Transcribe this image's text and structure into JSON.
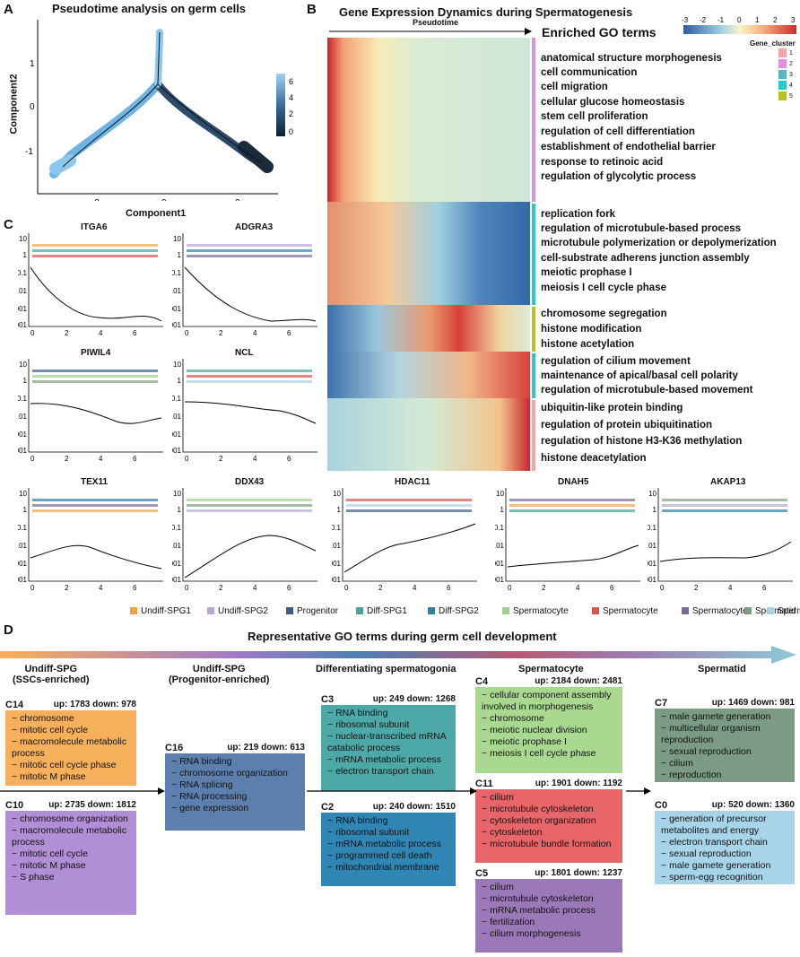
{
  "panelA": {
    "label": "A",
    "title": "Pseudotime analysis on germ cells",
    "xlabel": "Component1",
    "ylabel": "Component2",
    "xticks": [
      "-2",
      "0",
      "2"
    ],
    "yticks": [
      "1",
      "0",
      "-1"
    ],
    "colorbar_ticks": [
      "6",
      "4",
      "2",
      "0"
    ]
  },
  "panelB": {
    "label": "B",
    "title": "Gene Expression Dynamics during Spermatogenesis",
    "axis_label": "Pseudotime",
    "go_header": "Enriched GO terms",
    "scale_ticks": [
      "-3",
      "-2",
      "-1",
      "0",
      "1",
      "2",
      "3"
    ],
    "cluster_legend_title": "Gene_cluster",
    "cluster_ids": [
      "1",
      "2",
      "3",
      "4",
      "5"
    ],
    "cluster_colors": [
      "#f4a3a6",
      "#e48fd9",
      "#5ab4c1",
      "#2ec7c8",
      "#b7c225"
    ],
    "go_terms": [
      "anatomical structure morphogenesis",
      "cell communication",
      "cell migration",
      "cellular glucose homeostasis",
      "stem cell proliferation",
      "regulation of cell differentiation",
      "establishment of endothelial barrier",
      "response to retinoic acid",
      "regulation of glycolytic process",
      "replication fork",
      "regulation of microtubule-based process",
      "microtubule polymerization or depolymerization",
      "cell-substrate adherens junction assembly",
      "meiotic prophase I",
      "meiosis I cell cycle phase",
      "chromosome segregation",
      "histone modification",
      "histone acetylation",
      "regulation of cilium movement",
      "maintenance of apical/basal cell polarity",
      "regulation of microtubule-based movement",
      "ubiquitin-like protein binding",
      "regulation of protein ubiquitination",
      "regulation of histone H3-K36 methylation",
      "histone deacetylation"
    ]
  },
  "panelC": {
    "label": "C",
    "genes": [
      "ITGA6",
      "ADGRA3",
      "PIWIL4",
      "NCL",
      "TEX11",
      "DDX43",
      "HDAC11",
      "DNAH5",
      "AKAP13"
    ],
    "yticks": [
      "10",
      "1",
      "0.1",
      "0.01",
      "0.001",
      "0.0001"
    ],
    "xticks": [
      "0",
      "2",
      "4",
      "6"
    ],
    "legend": [
      {
        "label": "Undiff-SPG1",
        "color": "#f0a243"
      },
      {
        "label": "Undiff-SPG2",
        "color": "#b7a6d3"
      },
      {
        "label": "Progenitor",
        "color": "#3e5c88"
      },
      {
        "label": "Diff-SPG1",
        "color": "#46a39b"
      },
      {
        "label": "Diff-SPG2",
        "color": "#2f7fa7"
      },
      {
        "label": "Spermatocyte",
        "color": "#9cd08a"
      },
      {
        "label": "Spermatocyte",
        "color": "#d9534f"
      },
      {
        "label": "Spermatocyte",
        "color": "#7c6a96"
      },
      {
        "label": "Spermatid",
        "color": "#7f9b85"
      },
      {
        "label": "Spermatid",
        "color": "#a8d2e2"
      }
    ]
  },
  "panelD": {
    "label": "D",
    "title": "Representative GO terms during germ cell development",
    "stages": [
      {
        "line1": "Undiff-SPG",
        "line2": "(SSCs-enriched)"
      },
      {
        "line1": "Undiff-SPG",
        "line2": "(Progenitor-enriched)"
      },
      {
        "line1": "Differentiating spermatogonia",
        "line2": ""
      },
      {
        "line1": "Spermatocyte",
        "line2": ""
      },
      {
        "line1": "Spermatid",
        "line2": ""
      }
    ],
    "clusters": {
      "C14": {
        "id": "C14",
        "stats": "up: 1783  down: 978",
        "color": "#f6b05c",
        "terms": [
          "chromosome",
          "mitotic cell cycle",
          "macromolecule metabolic process",
          "mitotic cell cycle phase",
          "mitotic M phase"
        ]
      },
      "C10": {
        "id": "C10",
        "stats": "up: 2735 down: 1812",
        "color": "#b18fd6",
        "terms": [
          "chromosome organization",
          "macromolecule metabolic process",
          "mitotic cell cycle",
          "mitotic M phase",
          "S phase"
        ]
      },
      "C16": {
        "id": "C16",
        "stats": "up: 219    down: 613",
        "color": "#5d7fae",
        "terms": [
          "RNA binding",
          "chromosome organization",
          "RNA splicing",
          "RNA processing",
          "gene expression"
        ]
      },
      "C3": {
        "id": "C3",
        "stats": "up: 249  down: 1268",
        "color": "#4ca9a8",
        "terms": [
          "RNA binding",
          "ribosomal subunit",
          "nuclear-transcribed mRNA catabolic process",
          "mRNA metabolic process",
          "electron transport chain"
        ]
      },
      "C2": {
        "id": "C2",
        "stats": "up: 240  down: 1510",
        "color": "#2f86b5",
        "terms": [
          "RNA binding",
          "ribosomal subunit",
          "mRNA metabolic process",
          "programmed cell death",
          "mitochondrial membrane"
        ]
      },
      "C4": {
        "id": "C4",
        "stats": "up: 2184  down: 2481",
        "color": "#a9d991",
        "terms": [
          "cellular component assembly involved in morphogenesis",
          "chromosome",
          "meiotic nuclear division",
          "meiotic prophase I",
          "meiosis I cell cycle phase"
        ]
      },
      "C11": {
        "id": "C11",
        "stats": "up: 1901  down: 1192",
        "color": "#e8666a",
        "terms": [
          "cilium",
          "microtubule cytoskeleton",
          "cytoskeleton organization",
          "cytoskeleton",
          "microtubule bundle formation"
        ]
      },
      "C5": {
        "id": "C5",
        "stats": "up: 1801  down: 1237",
        "color": "#9b79b8",
        "terms": [
          "cilium",
          "microtubule cytoskeleton",
          "mRNA metabolic process",
          "fertilization",
          "cilium morphogenesis"
        ]
      },
      "C7": {
        "id": "C7",
        "stats": "up: 1469  down: 981",
        "color": "#7b9b85",
        "terms": [
          "male gamete generation",
          "multicellular organism reproduction",
          "sexual reproduction",
          "cilium",
          "reproduction"
        ]
      },
      "C0": {
        "id": "C0",
        "stats": "up: 520  down: 1360",
        "color": "#a8d4ea",
        "terms": [
          "generation of precursor metabolites and energy",
          "electron transport chain",
          "sexual reproduction",
          "male gamete generation",
          "sperm-egg recognition"
        ]
      }
    }
  }
}
